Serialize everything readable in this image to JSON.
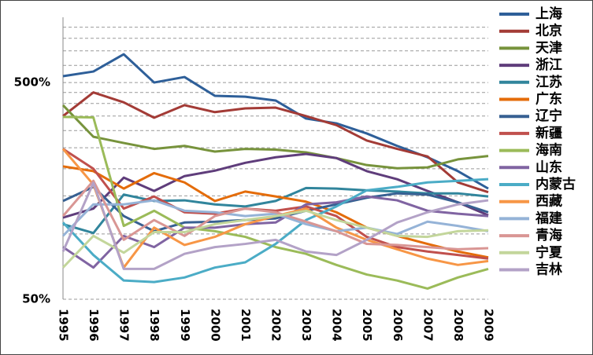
{
  "chart_data": {
    "type": "line",
    "log_scale": true,
    "x": [
      "1995",
      "1996",
      "1997",
      "1998",
      "1999",
      "2000",
      "2001",
      "2002",
      "2003",
      "2004",
      "2005",
      "2006",
      "2007",
      "2008",
      "2009"
    ],
    "ylim": [
      50,
      1000
    ],
    "yticks": [
      {
        "value": 50,
        "label": "50%"
      },
      {
        "value": 500,
        "label": "500%"
      }
    ],
    "y_minor_grid": [
      100,
      150,
      200,
      250,
      300,
      350,
      400,
      450,
      600,
      700,
      800,
      900
    ],
    "grid": true,
    "legend": "right",
    "series": [
      {
        "name": "上海",
        "color": "#2e5f99",
        "values": [
          535,
          562,
          675,
          500,
          530,
          434,
          430,
          413,
          341,
          324,
          291,
          255,
          226,
          195,
          162
        ]
      },
      {
        "name": "北京",
        "color": "#a33b36",
        "values": [
          350,
          450,
          405,
          344,
          393,
          365,
          380,
          383,
          350,
          318,
          270,
          247,
          228,
          173,
          156
        ]
      },
      {
        "name": "天津",
        "color": "#77933c",
        "values": [
          393,
          281,
          263,
          247,
          255,
          240,
          247,
          245,
          238,
          224,
          208,
          201,
          203,
          221,
          229
        ]
      },
      {
        "name": "浙江",
        "color": "#5f3d7b",
        "values": [
          119,
          131,
          182,
          158,
          185,
          196,
          213,
          226,
          234,
          224,
          195,
          179,
          158,
          140,
          122
        ]
      },
      {
        "name": "江苏",
        "color": "#31859c",
        "values": [
          111,
          101,
          152,
          142,
          143,
          137,
          134,
          142,
          163,
          162,
          159,
          157,
          154,
          154,
          149
        ]
      },
      {
        "name": "广东",
        "color": "#e46c0a",
        "values": [
          205,
          195,
          162,
          191,
          173,
          142,
          157,
          149,
          141,
          126,
          107,
          98,
          90,
          83,
          78
        ]
      },
      {
        "name": "辽宁",
        "color": "#376092",
        "values": [
          142,
          165,
          121,
          103,
          113,
          114,
          116,
          118,
          128,
          137,
          147,
          154,
          152,
          140,
          126
        ]
      },
      {
        "name": "新疆",
        "color": "#c0504d",
        "values": [
          247,
          200,
          131,
          149,
          126,
          124,
          131,
          128,
          134,
          121,
          97,
          87,
          83,
          80,
          77
        ]
      },
      {
        "name": "海南",
        "color": "#9bbb59",
        "values": [
          347,
          345,
          109,
          128,
          107,
          103,
          97,
          87,
          81,
          72,
          65,
          61,
          56,
          63,
          69
        ]
      },
      {
        "name": "山东",
        "color": "#8064a2",
        "values": [
          87,
          70,
          98,
          87,
          107,
          107,
          111,
          113,
          137,
          140,
          149,
          143,
          128,
          124,
          121
        ]
      },
      {
        "name": "内蒙古",
        "color": "#4bacc6",
        "values": [
          113,
          80,
          61,
          60,
          63,
          70,
          74,
          90,
          116,
          134,
          159,
          165,
          173,
          176,
          179
        ]
      },
      {
        "name": "西藏",
        "color": "#f79646",
        "values": [
          247,
          169,
          70,
          107,
          89,
          97,
          111,
          121,
          131,
          107,
          94,
          85,
          77,
          72,
          75
        ]
      },
      {
        "name": "福建",
        "color": "#95b3d7",
        "values": [
          98,
          137,
          137,
          143,
          128,
          126,
          121,
          124,
          111,
          103,
          107,
          100,
          114,
          109,
          103
        ]
      },
      {
        "name": "青海",
        "color": "#d99694",
        "values": [
          121,
          176,
          94,
          116,
          98,
          121,
          131,
          126,
          114,
          103,
          90,
          89,
          87,
          85,
          86
        ]
      },
      {
        "name": "宁夏",
        "color": "#c3d69b",
        "values": [
          70,
          98,
          82,
          102,
          102,
          111,
          116,
          121,
          128,
          116,
          107,
          98,
          97,
          103,
          104
        ]
      },
      {
        "name": "吉林",
        "color": "#b3a2c7",
        "values": [
          83,
          172,
          69,
          69,
          81,
          87,
          90,
          94,
          83,
          80,
          94,
          113,
          126,
          137,
          143
        ]
      }
    ]
  }
}
